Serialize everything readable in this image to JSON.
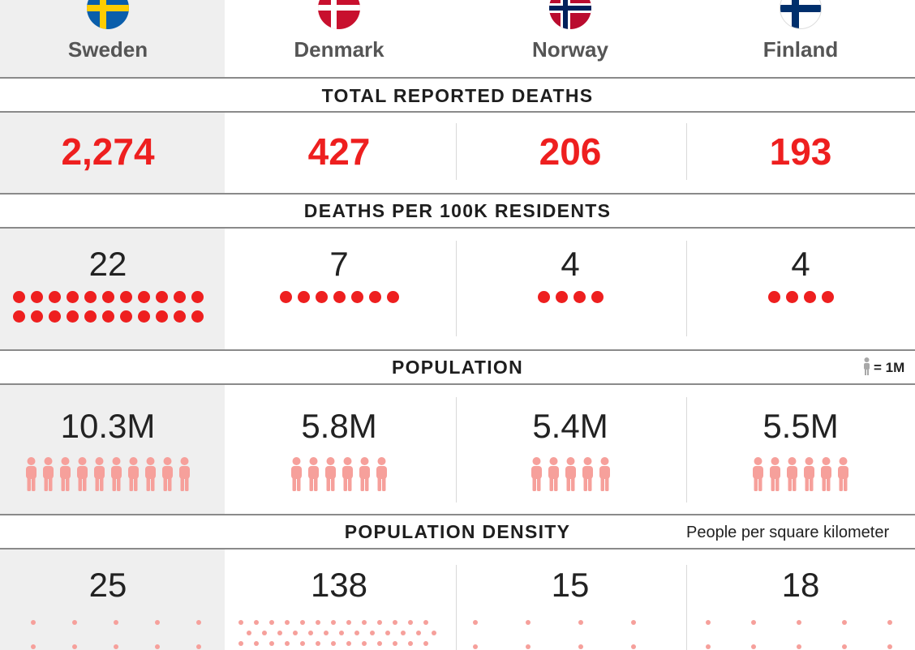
{
  "chart_data": {
    "type": "table",
    "countries": [
      {
        "name": "Sweden"
      },
      {
        "name": "Denmark"
      },
      {
        "name": "Norway"
      },
      {
        "name": "Finland"
      }
    ],
    "sections": [
      {
        "key": "deaths",
        "title": "TOTAL REPORTED DEATHS",
        "labels": [
          "2,274",
          "427",
          "206",
          "193"
        ],
        "values": [
          2274,
          427,
          206,
          193
        ]
      },
      {
        "key": "per100k",
        "title": "DEATHS PER 100K RESIDENTS",
        "labels": [
          "22",
          "7",
          "4",
          "4"
        ],
        "values": [
          22,
          7,
          4,
          4
        ]
      },
      {
        "key": "population",
        "title": "POPULATION",
        "labels": [
          "10.3M",
          "5.8M",
          "5.4M",
          "5.5M"
        ],
        "values": [
          10.3,
          5.8,
          5.4,
          5.5
        ],
        "legend_note": "= 1M"
      },
      {
        "key": "density",
        "title": "POPULATION DENSITY",
        "labels": [
          "25",
          "138",
          "15",
          "18"
        ],
        "values": [
          25,
          138,
          15,
          18
        ],
        "unit_note": "People per square kilometer"
      }
    ]
  },
  "colors": {
    "accent_red": "#ee1f1f",
    "person_pink": "#f6a09b",
    "highlight_bg": "#efefef"
  }
}
